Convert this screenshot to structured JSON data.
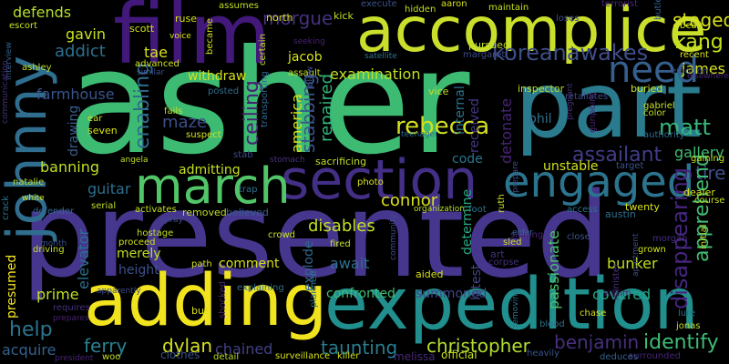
{
  "word_cloud": {
    "background": "#000000",
    "words": [
      {
        "text": "asher",
        "color": "#3dbb73"
      },
      {
        "text": "presented",
        "color": "#46368e"
      },
      {
        "text": "part",
        "color": "#2a7b8e"
      },
      {
        "text": "accomplice",
        "color": "#c9df2b"
      },
      {
        "text": "film",
        "color": "#43187b"
      },
      {
        "text": "adding",
        "color": "#f1e41e"
      },
      {
        "text": "expedition",
        "color": "#218f8d"
      },
      {
        "text": "section",
        "color": "#432f85"
      },
      {
        "text": "johnny",
        "color": "#2f6e8f"
      },
      {
        "text": "march",
        "color": "#52c569"
      },
      {
        "text": "engaged",
        "color": "#2c738e"
      },
      {
        "text": "need",
        "color": "#355f8d"
      },
      {
        "text": "koreanawakes",
        "color": "#3e4e89"
      },
      {
        "text": "kang",
        "color": "#c4e21b"
      },
      {
        "text": "staged",
        "color": "#d9e11c"
      },
      {
        "text": "james",
        "color": "#d8e21c"
      },
      {
        "text": "matt",
        "color": "#36b77a"
      },
      {
        "text": "rebecca",
        "color": "#d3e01f"
      },
      {
        "text": "assailant",
        "color": "#413c87"
      },
      {
        "text": "gallery",
        "color": "#3fbc73"
      },
      {
        "text": "tire",
        "color": "#3c4f8a"
      },
      {
        "text": "apprehend",
        "color": "#3ebc74"
      },
      {
        "text": "disappearing",
        "color": "#46267f"
      },
      {
        "text": "bunker",
        "color": "#c0df25"
      },
      {
        "text": "covered",
        "color": "#21a785"
      },
      {
        "text": "identify",
        "color": "#3ebc74"
      },
      {
        "text": "benjamin",
        "color": "#472f7d"
      },
      {
        "text": "christopher",
        "color": "#b0dd2f"
      },
      {
        "text": "taunting",
        "color": "#287d8e"
      },
      {
        "text": "dylan",
        "color": "#d5e11f"
      },
      {
        "text": "ferry",
        "color": "#26828e"
      },
      {
        "text": "chained",
        "color": "#424086"
      },
      {
        "text": "help",
        "color": "#2b758e"
      },
      {
        "text": "acquire",
        "color": "#34618d"
      },
      {
        "text": "presumed",
        "color": "#f3e51f"
      },
      {
        "text": "prime",
        "color": "#c2df23"
      },
      {
        "text": "elevator",
        "color": "#2b718e"
      },
      {
        "text": "height",
        "color": "#3b528b"
      },
      {
        "text": "comment",
        "color": "#d8e219"
      },
      {
        "text": "merely",
        "color": "#c0df25"
      },
      {
        "text": "await",
        "color": "#2e6f8e"
      },
      {
        "text": "explode",
        "color": "#31688e"
      },
      {
        "text": "confronted",
        "color": "#3ebc74"
      },
      {
        "text": "summoned",
        "color": "#404688"
      },
      {
        "text": "latest",
        "color": "#3f4788"
      },
      {
        "text": "passionate",
        "color": "#4ac16d"
      },
      {
        "text": "determine",
        "color": "#25ab82"
      },
      {
        "text": "guitar",
        "color": "#2e6e8e"
      },
      {
        "text": "banning",
        "color": "#c0df25"
      },
      {
        "text": "drawing",
        "color": "#355f8d"
      },
      {
        "text": "farmhouse",
        "color": "#3a548c"
      },
      {
        "text": "addict",
        "color": "#2c728e"
      },
      {
        "text": "gavin",
        "color": "#c7e020"
      },
      {
        "text": "defends",
        "color": "#b5de2b"
      },
      {
        "text": "tae",
        "color": "#d8e219"
      },
      {
        "text": "withdraw",
        "color": "#d5e21a"
      },
      {
        "text": "enabling",
        "color": "#2f6b8e"
      },
      {
        "text": "maze",
        "color": "#3d4d8a"
      },
      {
        "text": "admitting",
        "color": "#c6e021"
      },
      {
        "text": "ceiling",
        "color": "#482173"
      },
      {
        "text": "america",
        "color": "#d6e21a"
      },
      {
        "text": "stabbing",
        "color": "#3a548c"
      },
      {
        "text": "repaired",
        "color": "#31b57b"
      },
      {
        "text": "morgue",
        "color": "#46307e"
      },
      {
        "text": "jacob",
        "color": "#d6e21a"
      },
      {
        "text": "examination",
        "color": "#c0df25"
      },
      {
        "text": "connor",
        "color": "#d8e219"
      },
      {
        "text": "disables",
        "color": "#c2df23"
      },
      {
        "text": "code",
        "color": "#2a768e"
      },
      {
        "text": "unstable",
        "color": "#d0e11c"
      },
      {
        "text": "received",
        "color": "#453781"
      },
      {
        "text": "internal",
        "color": "#2c728e"
      },
      {
        "text": "detonate",
        "color": "#482576"
      },
      {
        "text": "phil",
        "color": "#2e6e8e"
      },
      {
        "text": "inspector",
        "color": "#c0df25"
      },
      {
        "text": "vice",
        "color": "#c6e021"
      },
      {
        "text": "sacrificing",
        "color": "#bddf26"
      },
      {
        "text": "ruse",
        "color": "#d6e21a"
      },
      {
        "text": "scott",
        "color": "#d0e11c"
      },
      {
        "text": "kick",
        "color": "#c6e021"
      },
      {
        "text": "north",
        "color": "#d6e21a"
      },
      {
        "text": "assumes",
        "color": "#c2df23"
      },
      {
        "text": "execute",
        "color": "#3b528b"
      },
      {
        "text": "aaron",
        "color": "#d6e21a"
      },
      {
        "text": "maintain",
        "color": "#c8e020"
      },
      {
        "text": "terrorist",
        "color": "#482576"
      },
      {
        "text": "loses",
        "color": "#3e4c8a"
      },
      {
        "text": "butler",
        "color": "#355f8d"
      },
      {
        "text": "beat",
        "color": "#c6e021"
      },
      {
        "text": "lure",
        "color": "#2e6e8e"
      },
      {
        "text": "jonas",
        "color": "#c0df25"
      },
      {
        "text": "surrounded",
        "color": "#482475"
      },
      {
        "text": "deduces",
        "color": "#34618d"
      },
      {
        "text": "heavily",
        "color": "#3a548c"
      },
      {
        "text": "official",
        "color": "#c6e021"
      },
      {
        "text": "melissa",
        "color": "#482878"
      },
      {
        "text": "killer",
        "color": "#d0e11c"
      },
      {
        "text": "surveillance",
        "color": "#d8e219"
      },
      {
        "text": "clothes",
        "color": "#3b528b"
      },
      {
        "text": "woo",
        "color": "#c2df23"
      },
      {
        "text": "president",
        "color": "#482475"
      },
      {
        "text": "detail",
        "color": "#bddf26"
      },
      {
        "text": "blood",
        "color": "#2e6e8e"
      },
      {
        "text": "chase",
        "color": "#d6e21a"
      },
      {
        "text": "minister",
        "color": "#46307e"
      },
      {
        "text": "victim",
        "color": "#482173"
      },
      {
        "text": "grown",
        "color": "#d0e11c"
      },
      {
        "text": "morgan",
        "color": "#46307e"
      },
      {
        "text": "dealer",
        "color": "#d8e219"
      },
      {
        "text": "course",
        "color": "#c2df23"
      },
      {
        "text": "gaining",
        "color": "#c6e021"
      },
      {
        "text": "authority",
        "color": "#31688e"
      },
      {
        "text": "gabriel",
        "color": "#c6e021"
      },
      {
        "text": "color",
        "color": "#c2df23"
      },
      {
        "text": "retaliates",
        "color": "#3e4c8a"
      },
      {
        "text": "buried",
        "color": "#c8e020"
      },
      {
        "text": "recent",
        "color": "#d8e219"
      },
      {
        "text": "emotion",
        "color": "#3b528b"
      },
      {
        "text": "elsewhere",
        "color": "#482878"
      },
      {
        "text": "twenty",
        "color": "#d8e219"
      },
      {
        "text": "austin",
        "color": "#2e6e8e"
      },
      {
        "text": "access",
        "color": "#2c728e"
      },
      {
        "text": "close",
        "color": "#3b528b"
      },
      {
        "text": "singing",
        "color": "#482475"
      },
      {
        "text": "sled",
        "color": "#d0e11c"
      },
      {
        "text": "corpse",
        "color": "#46307e"
      },
      {
        "text": "aided",
        "color": "#d6e21a"
      },
      {
        "text": "pursued",
        "color": "#bddf26"
      },
      {
        "text": "margaret",
        "color": "#3e4c8a"
      },
      {
        "text": "photo",
        "color": "#d6e21a"
      },
      {
        "text": "crowd",
        "color": "#c6e021"
      },
      {
        "text": "fired",
        "color": "#c2df23"
      },
      {
        "text": "planned",
        "color": "#2c728e"
      },
      {
        "text": "removed",
        "color": "#bddf26"
      },
      {
        "text": "believed",
        "color": "#34618d"
      },
      {
        "text": "path",
        "color": "#d0e11c"
      },
      {
        "text": "bus",
        "color": "#d6e21a"
      },
      {
        "text": "explaining",
        "color": "#2e6e8e"
      },
      {
        "text": "shocked",
        "color": "#482475"
      },
      {
        "text": "requires",
        "color": "#46307e"
      },
      {
        "text": "apparently",
        "color": "#3e4c8a"
      },
      {
        "text": "prepares",
        "color": "#482173"
      },
      {
        "text": "driving",
        "color": "#c6e021"
      },
      {
        "text": "month",
        "color": "#3b528b"
      },
      {
        "text": "serial",
        "color": "#c0df25"
      },
      {
        "text": "activates",
        "color": "#c6e021"
      },
      {
        "text": "hostage",
        "color": "#c2df23"
      },
      {
        "text": "proceed",
        "color": "#d0e11c"
      },
      {
        "text": "spray",
        "color": "#3e4c8a"
      },
      {
        "text": "defender",
        "color": "#31688e"
      },
      {
        "text": "crack",
        "color": "#2c728e"
      },
      {
        "text": "white",
        "color": "#d8e219"
      },
      {
        "text": "natalie",
        "color": "#bddf26"
      },
      {
        "text": "angela",
        "color": "#c2df23"
      },
      {
        "text": "seven",
        "color": "#d8e219"
      },
      {
        "text": "ear",
        "color": "#c6e021"
      },
      {
        "text": "suspect",
        "color": "#d6e21a"
      },
      {
        "text": "fails",
        "color": "#c0df25"
      },
      {
        "text": "similar",
        "color": "#3b528b"
      },
      {
        "text": "advanced",
        "color": "#d0e11c"
      },
      {
        "text": "posted",
        "color": "#2e6e8e"
      },
      {
        "text": "stab",
        "color": "#3e4c8a"
      },
      {
        "text": "stomach",
        "color": "#46307e"
      },
      {
        "text": "trap",
        "color": "#2c728e"
      },
      {
        "text": "assault",
        "color": "#c6e021"
      },
      {
        "text": "blow",
        "color": "#3b528b"
      },
      {
        "text": "seeking",
        "color": "#482173"
      },
      {
        "text": "transporting",
        "color": "#31688e"
      },
      {
        "text": "certain",
        "color": "#c2df23"
      },
      {
        "text": "became",
        "color": "#d0e11c"
      },
      {
        "text": "voice",
        "color": "#d6e21a"
      },
      {
        "text": "escort",
        "color": "#c6e021"
      },
      {
        "text": "interview",
        "color": "#34618d"
      },
      {
        "text": "communication",
        "color": "#46307e"
      },
      {
        "text": "ashley",
        "color": "#c2df23"
      },
      {
        "text": "satellite",
        "color": "#2c728e"
      },
      {
        "text": "teenager",
        "color": "#2e6e8e"
      },
      {
        "text": "target",
        "color": "#3b528b"
      },
      {
        "text": "prepare",
        "color": "#3e4c8a"
      },
      {
        "text": "ruth",
        "color": "#c6e021"
      },
      {
        "text": "foot",
        "color": "#2c728e"
      },
      {
        "text": "organization",
        "color": "#bddf26"
      },
      {
        "text": "community",
        "color": "#3e4c8a"
      },
      {
        "text": "removing",
        "color": "#2c728e"
      },
      {
        "text": "elder",
        "color": "#31688e"
      },
      {
        "text": "art",
        "color": "#46307e"
      },
      {
        "text": "gunpoint",
        "color": "#482475"
      },
      {
        "text": "pregnant",
        "color": "#46307e"
      },
      {
        "text": "initial",
        "color": "#d0e11c"
      },
      {
        "text": "apartment",
        "color": "#3e4c8a"
      },
      {
        "text": "hidden",
        "color": "#c2df23"
      }
    ]
  }
}
